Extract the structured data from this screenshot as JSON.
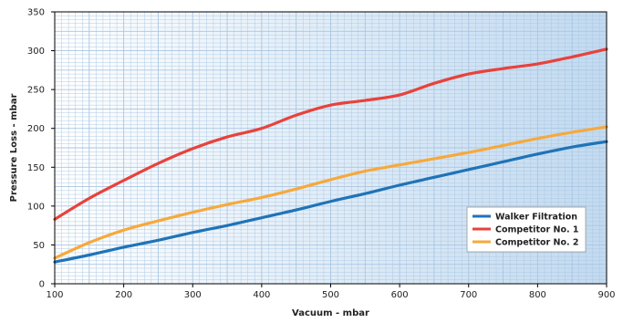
{
  "chart_data": {
    "type": "line",
    "xlabel": "Vacuum - mbar",
    "ylabel": "Pressure Loss - mbar",
    "xlim": [
      100,
      900
    ],
    "ylim": [
      0,
      350
    ],
    "x_ticks": [
      100,
      200,
      300,
      400,
      500,
      600,
      700,
      800,
      900
    ],
    "y_ticks": [
      0,
      50,
      100,
      150,
      200,
      250,
      300,
      350
    ],
    "grid": true,
    "legend_position": "bottom-right",
    "background_gradient": [
      "#ffffff",
      "#c2daf0"
    ],
    "grid_color": "#a9c6e2",
    "series": [
      {
        "name": "Walker Filtration",
        "color": "#1f73b7",
        "x": [
          100,
          150,
          200,
          250,
          300,
          350,
          400,
          450,
          500,
          550,
          600,
          650,
          700,
          750,
          800,
          850,
          900
        ],
        "y": [
          28,
          37,
          47,
          56,
          66,
          75,
          85,
          95,
          106,
          116,
          127,
          137,
          147,
          157,
          167,
          176,
          183
        ]
      },
      {
        "name": "Competitor No. 1",
        "color": "#e8423b",
        "x": [
          100,
          150,
          200,
          250,
          300,
          350,
          400,
          450,
          500,
          550,
          600,
          650,
          700,
          750,
          800,
          850,
          900
        ],
        "y": [
          83,
          110,
          133,
          155,
          174,
          189,
          200,
          217,
          230,
          236,
          243,
          258,
          270,
          277,
          283,
          292,
          302
        ]
      },
      {
        "name": "Competitor No. 2",
        "color": "#f6a93b",
        "x": [
          100,
          150,
          200,
          250,
          300,
          350,
          400,
          450,
          500,
          550,
          600,
          650,
          700,
          750,
          800,
          850,
          900
        ],
        "y": [
          33,
          53,
          69,
          81,
          92,
          102,
          111,
          122,
          134,
          145,
          153,
          161,
          169,
          178,
          187,
          195,
          202
        ]
      }
    ]
  }
}
